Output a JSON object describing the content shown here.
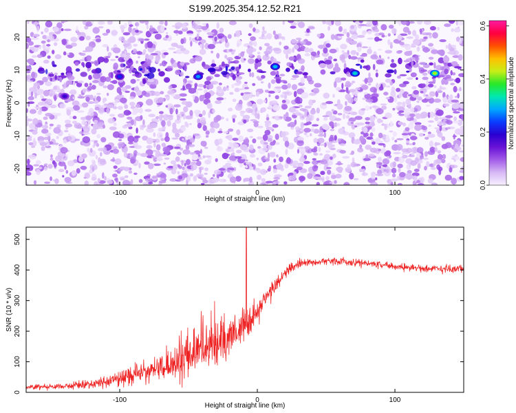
{
  "title": "S199.2025.354.12.52.R21",
  "colors": {
    "snr_line": "#ee2222",
    "axis": "#000000",
    "colormap": [
      "#f7f0ff",
      "#d7b8f5",
      "#a35ce8",
      "#6a12d6",
      "#2a00d0",
      "#0a3cff",
      "#00a8ff",
      "#00e8b0",
      "#28e828",
      "#c8ee18",
      "#ffc000",
      "#ff5000",
      "#ff0040",
      "#ff1aa0"
    ]
  },
  "chart_data": [
    {
      "type": "heatmap",
      "name": "spectrogram",
      "xlabel": "Height of straight line (km)",
      "ylabel": "Frequency (Hz)",
      "xlim": [
        -168,
        150
      ],
      "ylim": [
        -25,
        25
      ],
      "xticks": [
        -100,
        0,
        100
      ],
      "yticks": [
        -20,
        -10,
        0,
        10,
        20
      ],
      "colorbar": {
        "label": "Normalized spectral amplitude",
        "range": [
          0,
          0.62
        ],
        "ticks": [
          "0.0",
          "0.2",
          "0.4",
          "0.6"
        ],
        "tick_values": [
          0.0,
          0.2,
          0.4,
          0.6
        ]
      },
      "bright_band": {
        "frequency_hz": 10,
        "x_range": [
          -168,
          150
        ]
      },
      "hotspots": [
        {
          "x": 13,
          "y": 11,
          "amplitude": 0.3
        },
        {
          "x": 71,
          "y": 9,
          "amplitude": 0.32
        },
        {
          "x": 129,
          "y": 9,
          "amplitude": 0.42
        },
        {
          "x": -43,
          "y": 8,
          "amplitude": 0.28
        },
        {
          "x": -100,
          "y": 8,
          "amplitude": 0.22
        },
        {
          "x": -140,
          "y": 2,
          "amplitude": 0.18
        }
      ]
    },
    {
      "type": "line",
      "name": "snr",
      "xlabel": "Height of straight line (km)",
      "ylabel": "SNR (10 * v/v)",
      "xlim": [
        -168,
        150
      ],
      "ylim": [
        0,
        540
      ],
      "xticks": [
        -100,
        0,
        100
      ],
      "yticks": [
        0,
        100,
        200,
        300,
        400,
        500
      ],
      "series": [
        {
          "name": "SNR",
          "x": [
            -168,
            -140,
            -115,
            -100,
            -90,
            -70,
            -60,
            -55,
            -50,
            -45,
            -40,
            -35,
            -30,
            -25,
            -20,
            -15,
            -10,
            -5,
            0,
            5,
            10,
            15,
            20,
            25,
            30,
            40,
            50,
            60,
            70,
            80,
            90,
            100,
            110,
            120,
            130,
            140,
            150
          ],
          "values": [
            18,
            20,
            30,
            45,
            60,
            80,
            90,
            100,
            120,
            130,
            140,
            150,
            160,
            170,
            180,
            200,
            220,
            240,
            260,
            300,
            330,
            360,
            390,
            410,
            420,
            425,
            430,
            428,
            425,
            422,
            418,
            412,
            408,
            406,
            405,
            404,
            405
          ],
          "noise_amplitude": [
            15,
            15,
            25,
            40,
            50,
            60,
            70,
            110,
            120,
            120,
            120,
            110,
            110,
            100,
            100,
            95,
            90,
            80,
            60,
            50,
            45,
            35,
            30,
            25,
            20,
            20,
            20,
            20,
            20,
            20,
            20,
            20,
            20,
            20,
            20,
            22,
            22
          ]
        }
      ],
      "annotations": [
        {
          "x": -8,
          "value": 540,
          "note": "spike"
        }
      ]
    }
  ]
}
